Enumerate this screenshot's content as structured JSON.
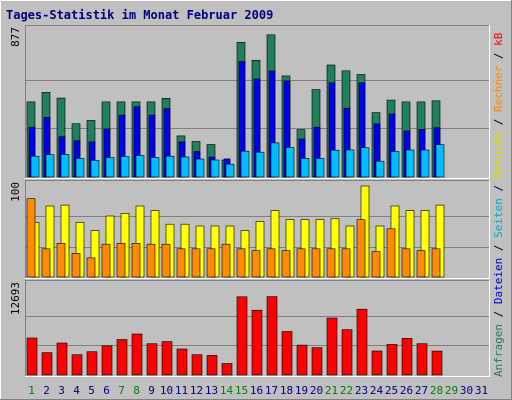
{
  "chart_data": {
    "title": "Tages-Statistik im Monat Februar 2009",
    "categories": [
      "1",
      "2",
      "3",
      "4",
      "5",
      "6",
      "7",
      "8",
      "9",
      "10",
      "11",
      "12",
      "13",
      "14",
      "15",
      "16",
      "17",
      "18",
      "19",
      "20",
      "21",
      "22",
      "23",
      "24",
      "25",
      "26",
      "27",
      "28",
      "29",
      "30",
      "31"
    ],
    "category_colors": [
      "#008000",
      "#000080",
      "#000080",
      "#000080",
      "#000080",
      "#000080",
      "#008000",
      "#008000",
      "#000080",
      "#000080",
      "#000080",
      "#000080",
      "#000080",
      "#008000",
      "#008000",
      "#000080",
      "#000080",
      "#000080",
      "#000080",
      "#000080",
      "#008000",
      "#008000",
      "#000080",
      "#000080",
      "#000080",
      "#000080",
      "#000080",
      "#008000",
      "#008000",
      "#000080",
      "#000080"
    ],
    "panels": [
      {
        "type": "bar",
        "ymax_label": "877",
        "ylim": [
          0,
          877
        ],
        "series": [
          {
            "name": "Anfragen",
            "color": "#1f7f5f",
            "values": [
              451,
              508,
              474,
              320,
              340,
              451,
              451,
              451,
              451,
              473,
              247,
              213,
              195,
              102,
              809,
              701,
              854,
              607,
              285,
              525,
              673,
              638,
              616,
              387,
              462,
              451,
              451,
              458,
              null,
              null,
              null
            ]
          },
          {
            "name": "Dateien",
            "color": "#0000ee",
            "values": [
              299,
              358,
              242,
              218,
              211,
              289,
              372,
              423,
              372,
              411,
              211,
              153,
              120,
              109,
              693,
              589,
              637,
              577,
              228,
              299,
              566,
              413,
              566,
              319,
              379,
              277,
              286,
              296,
              null,
              null,
              null
            ]
          },
          {
            "name": "Seiten",
            "color": "#00bfff",
            "values": [
              125,
              134,
              136,
              112,
              100,
              117,
              123,
              129,
              118,
              125,
              120,
              108,
              102,
              77,
              155,
              149,
              205,
              178,
              112,
              112,
              161,
              163,
              176,
              95,
              153,
              162,
              162,
              194,
              null,
              null,
              null
            ]
          }
        ]
      },
      {
        "type": "bar",
        "ymax_label": "100",
        "ylim": [
          0,
          100
        ],
        "series": [
          {
            "name": "Besuche",
            "color": "#ffff00",
            "values": [
              60,
              78,
              79,
              60,
              51,
              67,
              70,
              78,
              73,
              58,
              58,
              56,
              56,
              56,
              51,
              61,
              73,
              63,
              63,
              63,
              64,
              56,
              100,
              56,
              78,
              73,
              73,
              79,
              null,
              null,
              null
            ]
          },
          {
            "name": "Rechner",
            "color": "#ff8c00",
            "values": [
              86,
              31,
              37,
              26,
              21,
              36,
              37,
              37,
              36,
              36,
              31,
              31,
              31,
              36,
              31,
              29,
              31,
              29,
              31,
              31,
              31,
              31,
              63,
              28,
              53,
              31,
              29,
              31,
              null,
              null,
              null
            ]
          }
        ]
      },
      {
        "type": "bar",
        "ymax_label": "12693",
        "ylim": [
          0,
          12693
        ],
        "series": [
          {
            "name": "kB",
            "color": "#ff0000",
            "values": [
              5280,
              3190,
              4570,
              2890,
              3320,
              4160,
              5060,
              5850,
              4460,
              4760,
              3710,
              2890,
              2790,
              1640,
              11150,
              9240,
              11180,
              6200,
              4270,
              3910,
              8130,
              6470,
              9380,
              3420,
              4370,
              5240,
              4460,
              3410,
              null,
              null,
              null
            ]
          }
        ]
      }
    ]
  },
  "side_labels": [
    {
      "text": "Anfragen",
      "color": "#1f7f5f"
    },
    {
      "text": " / ",
      "color": "#000000"
    },
    {
      "text": "Dateien",
      "color": "#0000cd"
    },
    {
      "text": " / ",
      "color": "#000000"
    },
    {
      "text": "Seiten",
      "color": "#00aacc"
    },
    {
      "text": " / ",
      "color": "#000000"
    },
    {
      "text": "Besuche",
      "color": "#d9d900"
    },
    {
      "text": " / ",
      "color": "#000000"
    },
    {
      "text": "Rechner",
      "color": "#ff8c00"
    },
    {
      "text": " / ",
      "color": "#000000"
    },
    {
      "text": "kB",
      "color": "#ff0000"
    }
  ],
  "colors": {
    "background": "#c0c0c0",
    "plot_bg": "#c0c0c0",
    "gridline": "#808080",
    "border_dark": "#808080",
    "border_light": "#ffffff",
    "title": "#000080"
  }
}
